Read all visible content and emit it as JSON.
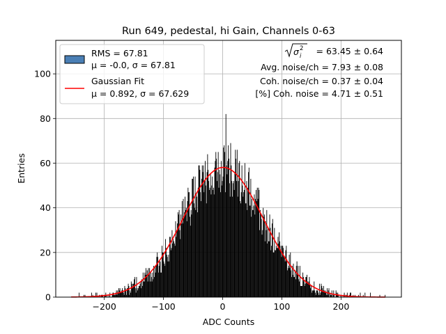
{
  "chart_data": {
    "type": "bar",
    "title": "Run 649, pedestal, hi Gain, Channels 0-63",
    "xlabel": "ADC Counts",
    "ylabel": "Entries",
    "xlim": [
      -282,
      302
    ],
    "ylim": [
      0,
      115
    ],
    "xticks": [
      -200,
      -100,
      0,
      100,
      200
    ],
    "xtick_labels": [
      "−200",
      "−100",
      "0",
      "100",
      "200"
    ],
    "yticks": [
      0,
      20,
      40,
      60,
      80,
      100
    ],
    "ytick_labels": [
      "0",
      "20",
      "40",
      "60",
      "80",
      "100"
    ],
    "grid": true,
    "histogram": {
      "range": [
        -256,
        275
      ],
      "bin_width": 1,
      "peak_bin_x": 5,
      "peak_bin_value": 82,
      "fill": "#000000"
    },
    "series": [
      {
        "name": "Gaussian Fit",
        "kind": "line",
        "color": "#ff0000",
        "mu": 0.892,
        "sigma": 67.629,
        "amplitude": 58.1,
        "x_range": [
          -256,
          275
        ]
      }
    ],
    "legend": {
      "placement": "top-left",
      "entries": [
        {
          "label": "RMS = 67.81",
          "sublabel": "μ = -0.0, σ = 67.81",
          "swatch": "patch",
          "color": "#4a7fb5",
          "edge": "#000000"
        },
        {
          "label": "Gaussian Fit",
          "sublabel": "μ = 0.892, σ = 67.629",
          "swatch": "line",
          "color": "#ff0000"
        }
      ]
    },
    "annotations": {
      "placement": "top-right",
      "lines": [
        "= 63.45 ± 0.64",
        "Avg. noise/ch = 7.93 ± 0.08",
        "Coh. noise/ch = 0.37 ± 0.04",
        "[%] Coh. noise = 4.71 ± 0.51"
      ]
    }
  }
}
